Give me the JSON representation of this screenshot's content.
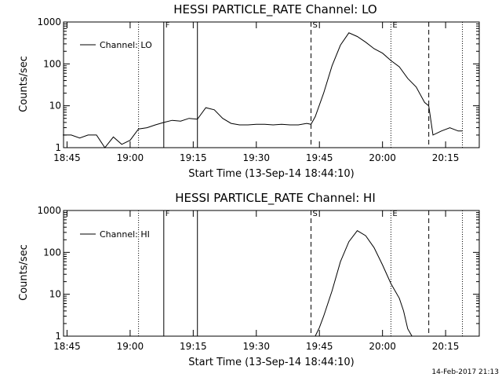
{
  "footer_timestamp": "14-Feb-2017 21:13",
  "chart_data": [
    {
      "type": "line",
      "title": "HESSI PARTICLE_RATE Channel: LO",
      "xlabel": "Start Time (13-Sep-14 18:44:10)",
      "ylabel": "Counts/sec",
      "y_scale": "log",
      "ylim": [
        1,
        1000
      ],
      "xlim": [
        "18:44:10",
        "20:23:00"
      ],
      "x_ticks": [
        "18:45",
        "19:00",
        "19:15",
        "19:30",
        "19:45",
        "20:00",
        "20:15"
      ],
      "y_ticks": [
        "1",
        "10",
        "100",
        "1000"
      ],
      "legend": {
        "position": "top-left",
        "entries": [
          "Channel: LO"
        ]
      },
      "marker_lines": [
        {
          "time": "19:02",
          "style": "dotted"
        },
        {
          "time": "19:08",
          "style": "solid",
          "label": "F"
        },
        {
          "time": "19:16",
          "style": "solid"
        },
        {
          "time": "19:43",
          "style": "dashed",
          "label": "S"
        },
        {
          "time": "20:02",
          "style": "dotted",
          "label": "E"
        },
        {
          "time": "20:11",
          "style": "dashed"
        },
        {
          "time": "20:19",
          "style": "dotted"
        }
      ],
      "series": [
        {
          "name": "Channel: LO",
          "x": [
            "18:44",
            "18:46",
            "18:48",
            "18:50",
            "18:52",
            "18:54",
            "18:56",
            "18:58",
            "19:00",
            "19:02",
            "19:04",
            "19:06",
            "19:08",
            "19:10",
            "19:12",
            "19:14",
            "19:16",
            "19:18",
            "19:20",
            "19:22",
            "19:24",
            "19:26",
            "19:28",
            "19:30",
            "19:32",
            "19:34",
            "19:36",
            "19:38",
            "19:40",
            "19:42",
            "19:43",
            "19:44",
            "19:46",
            "19:48",
            "19:50",
            "19:52",
            "19:54",
            "19:56",
            "19:58",
            "20:00",
            "20:02",
            "20:04",
            "20:06",
            "20:08",
            "20:10",
            "20:11",
            "20:12",
            "20:14",
            "20:16",
            "20:18",
            "20:19"
          ],
          "y": [
            2,
            2,
            1.7,
            2,
            2,
            1,
            1.8,
            1.2,
            1.5,
            2.8,
            3,
            3.5,
            4,
            4.5,
            4.3,
            5,
            4.8,
            9,
            8,
            5,
            3.8,
            3.5,
            3.5,
            3.6,
            3.6,
            3.5,
            3.6,
            3.5,
            3.5,
            3.8,
            3.6,
            5.5,
            20,
            90,
            280,
            550,
            450,
            330,
            230,
            180,
            120,
            85,
            45,
            28,
            12,
            10,
            2,
            2.5,
            3,
            2.5,
            2.5
          ]
        }
      ]
    },
    {
      "type": "line",
      "title": "HESSI PARTICLE_RATE Channel: HI",
      "xlabel": "Start Time (13-Sep-14 18:44:10)",
      "ylabel": "Counts/sec",
      "y_scale": "log",
      "ylim": [
        1,
        1000
      ],
      "xlim": [
        "18:44:10",
        "20:23:00"
      ],
      "x_ticks": [
        "18:45",
        "19:00",
        "19:15",
        "19:30",
        "19:45",
        "20:00",
        "20:15"
      ],
      "y_ticks": [
        "1",
        "10",
        "100",
        "1000"
      ],
      "legend": {
        "position": "top-left",
        "entries": [
          "Channel: HI"
        ]
      },
      "marker_lines": [
        {
          "time": "19:02",
          "style": "dotted"
        },
        {
          "time": "19:08",
          "style": "solid",
          "label": "F"
        },
        {
          "time": "19:16",
          "style": "solid"
        },
        {
          "time": "19:43",
          "style": "dashed",
          "label": "S"
        },
        {
          "time": "20:02",
          "style": "dotted",
          "label": "E"
        },
        {
          "time": "20:11",
          "style": "dashed"
        },
        {
          "time": "20:19",
          "style": "dotted"
        }
      ],
      "series": [
        {
          "name": "Channel: HI",
          "x": [
            "19:44",
            "19:45",
            "19:46",
            "19:48",
            "19:50",
            "19:52",
            "19:54",
            "19:56",
            "19:58",
            "20:00",
            "20:02",
            "20:04",
            "20:05",
            "20:06",
            "20:07"
          ],
          "y": [
            1,
            1.6,
            3,
            12,
            60,
            180,
            330,
            250,
            130,
            50,
            18,
            8,
            4,
            1.5,
            1
          ]
        }
      ]
    }
  ]
}
